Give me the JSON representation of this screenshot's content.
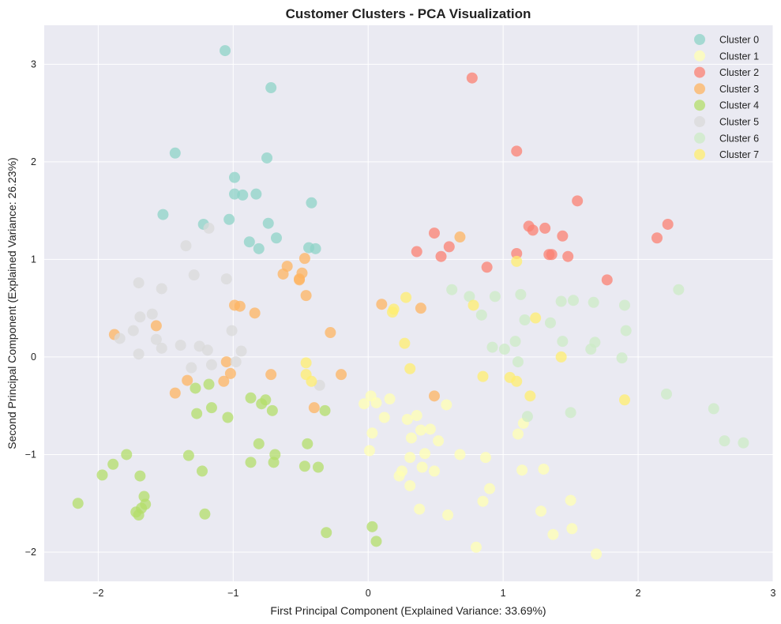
{
  "chart_data": {
    "type": "scatter",
    "title": "Customer Clusters - PCA Visualization",
    "xlabel": "First Principal Component (Explained Variance: 33.69%)",
    "ylabel": "Second Principal Component (Explained Variance: 26.23%)",
    "xlim": [
      -2.4,
      3.0
    ],
    "ylim": [
      -2.3,
      3.4
    ],
    "xticks": [
      -2,
      -1,
      0,
      1,
      2,
      3
    ],
    "xtick_labels": [
      "−2",
      "−1",
      "0",
      "1",
      "2",
      "3"
    ],
    "yticks": [
      -2,
      -1,
      0,
      1,
      2,
      3
    ],
    "ytick_labels": [
      "−2",
      "−1",
      "0",
      "1",
      "2",
      "3"
    ],
    "grid": true,
    "legend_position": "top-right",
    "series": [
      {
        "name": "Cluster 0",
        "color": "#8dd3c7",
        "points": [
          [
            -1.06,
            3.14
          ],
          [
            -0.72,
            2.76
          ],
          [
            -1.43,
            2.09
          ],
          [
            -0.75,
            2.04
          ],
          [
            -0.99,
            1.84
          ],
          [
            -0.99,
            1.67
          ],
          [
            -0.93,
            1.66
          ],
          [
            -0.83,
            1.67
          ],
          [
            -0.42,
            1.58
          ],
          [
            -1.52,
            1.46
          ],
          [
            -1.03,
            1.41
          ],
          [
            -1.22,
            1.36
          ],
          [
            -0.74,
            1.37
          ],
          [
            -0.88,
            1.18
          ],
          [
            -0.81,
            1.11
          ],
          [
            -0.68,
            1.22
          ],
          [
            -0.44,
            1.12
          ],
          [
            -0.39,
            1.11
          ]
        ]
      },
      {
        "name": "Cluster 1",
        "color": "#ffffb3",
        "points": [
          [
            0.02,
            -0.4
          ],
          [
            0.06,
            -0.47
          ],
          [
            -0.03,
            -0.48
          ],
          [
            0.16,
            -0.43
          ],
          [
            0.12,
            -0.62
          ],
          [
            0.29,
            -0.64
          ],
          [
            0.36,
            -0.6
          ],
          [
            0.58,
            -0.49
          ],
          [
            0.32,
            -0.83
          ],
          [
            0.39,
            -0.75
          ],
          [
            0.46,
            -0.74
          ],
          [
            0.52,
            -0.86
          ],
          [
            0.03,
            -0.78
          ],
          [
            0.01,
            -0.96
          ],
          [
            0.31,
            -1.03
          ],
          [
            0.42,
            -0.99
          ],
          [
            0.68,
            -1.0
          ],
          [
            0.87,
            -1.03
          ],
          [
            0.4,
            -1.13
          ],
          [
            0.49,
            -1.17
          ],
          [
            0.25,
            -1.17
          ],
          [
            0.23,
            -1.22
          ],
          [
            0.31,
            -1.32
          ],
          [
            0.9,
            -1.35
          ],
          [
            1.11,
            -0.79
          ],
          [
            1.15,
            -0.68
          ],
          [
            1.14,
            -1.16
          ],
          [
            1.3,
            -1.15
          ],
          [
            0.38,
            -1.56
          ],
          [
            0.59,
            -1.62
          ],
          [
            0.85,
            -1.48
          ],
          [
            1.28,
            -1.58
          ],
          [
            1.5,
            -1.47
          ],
          [
            1.37,
            -1.82
          ],
          [
            1.51,
            -1.76
          ],
          [
            0.8,
            -1.95
          ],
          [
            1.69,
            -2.02
          ]
        ]
      },
      {
        "name": "Cluster 2",
        "color": "#fb8072",
        "points": [
          [
            0.77,
            2.86
          ],
          [
            1.1,
            2.11
          ],
          [
            1.55,
            1.6
          ],
          [
            2.22,
            1.36
          ],
          [
            1.19,
            1.34
          ],
          [
            1.22,
            1.3
          ],
          [
            1.31,
            1.32
          ],
          [
            1.44,
            1.24
          ],
          [
            2.14,
            1.22
          ],
          [
            0.49,
            1.27
          ],
          [
            0.6,
            1.13
          ],
          [
            0.36,
            1.08
          ],
          [
            0.54,
            1.03
          ],
          [
            1.1,
            1.06
          ],
          [
            1.34,
            1.05
          ],
          [
            1.36,
            1.05
          ],
          [
            1.48,
            1.03
          ],
          [
            0.88,
            0.92
          ],
          [
            1.77,
            0.79
          ]
        ]
      },
      {
        "name": "Cluster 3",
        "color": "#fdb462",
        "points": [
          [
            0.68,
            1.23
          ],
          [
            -0.47,
            1.01
          ],
          [
            -0.6,
            0.93
          ],
          [
            -0.49,
            0.86
          ],
          [
            -0.63,
            0.85
          ],
          [
            -0.51,
            0.79
          ],
          [
            -0.51,
            0.8
          ],
          [
            -0.46,
            0.63
          ],
          [
            -0.99,
            0.53
          ],
          [
            -0.95,
            0.52
          ],
          [
            -0.84,
            0.45
          ],
          [
            0.1,
            0.54
          ],
          [
            0.39,
            0.5
          ],
          [
            -1.57,
            0.32
          ],
          [
            -0.28,
            0.25
          ],
          [
            -1.88,
            0.23
          ],
          [
            -1.05,
            -0.05
          ],
          [
            -1.02,
            -0.17
          ],
          [
            -1.07,
            -0.25
          ],
          [
            -1.34,
            -0.24
          ],
          [
            -0.72,
            -0.18
          ],
          [
            -0.2,
            -0.18
          ],
          [
            -1.43,
            -0.37
          ],
          [
            -0.4,
            -0.52
          ],
          [
            0.49,
            -0.4
          ]
        ]
      },
      {
        "name": "Cluster 4",
        "color": "#b3de69",
        "points": [
          [
            -1.18,
            -0.28
          ],
          [
            -1.28,
            -0.32
          ],
          [
            -0.87,
            -0.42
          ],
          [
            -0.76,
            -0.44
          ],
          [
            -0.79,
            -0.48
          ],
          [
            -0.71,
            -0.55
          ],
          [
            -0.32,
            -0.55
          ],
          [
            -1.16,
            -0.52
          ],
          [
            -1.27,
            -0.58
          ],
          [
            -1.04,
            -0.62
          ],
          [
            -0.81,
            -0.89
          ],
          [
            -0.45,
            -0.89
          ],
          [
            -0.69,
            -1.0
          ],
          [
            -1.33,
            -1.01
          ],
          [
            -1.79,
            -1.0
          ],
          [
            -0.87,
            -1.08
          ],
          [
            -0.7,
            -1.08
          ],
          [
            -0.47,
            -1.12
          ],
          [
            -0.37,
            -1.13
          ],
          [
            -1.89,
            -1.1
          ],
          [
            -1.97,
            -1.21
          ],
          [
            -1.23,
            -1.17
          ],
          [
            -1.69,
            -1.22
          ],
          [
            -1.66,
            -1.43
          ],
          [
            -1.65,
            -1.51
          ],
          [
            -2.15,
            -1.5
          ],
          [
            -1.68,
            -1.55
          ],
          [
            -1.72,
            -1.59
          ],
          [
            -1.7,
            -1.62
          ],
          [
            -1.21,
            -1.61
          ],
          [
            0.03,
            -1.74
          ],
          [
            -0.31,
            -1.8
          ],
          [
            0.06,
            -1.89
          ]
        ]
      },
      {
        "name": "Cluster 5",
        "color": "#d9d9d9",
        "points": [
          [
            -1.18,
            1.32
          ],
          [
            -1.35,
            1.14
          ],
          [
            -1.29,
            0.84
          ],
          [
            -1.05,
            0.8
          ],
          [
            -1.7,
            0.76
          ],
          [
            -1.53,
            0.7
          ],
          [
            -1.6,
            0.44
          ],
          [
            -1.69,
            0.41
          ],
          [
            -1.01,
            0.27
          ],
          [
            -1.74,
            0.27
          ],
          [
            -1.84,
            0.19
          ],
          [
            -1.57,
            0.18
          ],
          [
            -1.39,
            0.12
          ],
          [
            -1.25,
            0.11
          ],
          [
            -1.19,
            0.07
          ],
          [
            -0.94,
            0.06
          ],
          [
            -1.53,
            0.09
          ],
          [
            -1.7,
            0.03
          ],
          [
            -0.98,
            -0.05
          ],
          [
            -1.16,
            -0.08
          ],
          [
            -1.31,
            -0.11
          ],
          [
            -0.36,
            -0.29
          ]
        ]
      },
      {
        "name": "Cluster 6",
        "color": "#ccebc5",
        "points": [
          [
            0.62,
            0.69
          ],
          [
            0.75,
            0.62
          ],
          [
            0.94,
            0.62
          ],
          [
            1.13,
            0.64
          ],
          [
            1.43,
            0.57
          ],
          [
            1.52,
            0.58
          ],
          [
            1.67,
            0.56
          ],
          [
            1.9,
            0.53
          ],
          [
            2.3,
            0.69
          ],
          [
            0.84,
            0.43
          ],
          [
            1.16,
            0.38
          ],
          [
            1.35,
            0.35
          ],
          [
            1.91,
            0.27
          ],
          [
            1.09,
            0.16
          ],
          [
            1.44,
            0.16
          ],
          [
            1.68,
            0.15
          ],
          [
            0.92,
            0.1
          ],
          [
            1.01,
            0.08
          ],
          [
            1.65,
            0.08
          ],
          [
            1.11,
            -0.05
          ],
          [
            1.88,
            -0.01
          ],
          [
            2.21,
            -0.38
          ],
          [
            1.18,
            -0.61
          ],
          [
            1.5,
            -0.57
          ],
          [
            2.56,
            -0.53
          ],
          [
            2.64,
            -0.86
          ],
          [
            2.78,
            -0.88
          ]
        ]
      },
      {
        "name": "Cluster 7",
        "color": "#ffed6f",
        "points": [
          [
            1.1,
            0.98
          ],
          [
            0.78,
            0.53
          ],
          [
            0.28,
            0.61
          ],
          [
            0.19,
            0.49
          ],
          [
            0.18,
            0.46
          ],
          [
            1.24,
            0.4
          ],
          [
            0.27,
            0.14
          ],
          [
            1.43,
            0.0
          ],
          [
            -0.46,
            -0.06
          ],
          [
            0.31,
            -0.12
          ],
          [
            -0.46,
            -0.18
          ],
          [
            -0.42,
            -0.25
          ],
          [
            0.85,
            -0.2
          ],
          [
            1.05,
            -0.21
          ],
          [
            1.1,
            -0.25
          ],
          [
            1.2,
            -0.4
          ],
          [
            1.9,
            -0.44
          ]
        ]
      }
    ]
  }
}
